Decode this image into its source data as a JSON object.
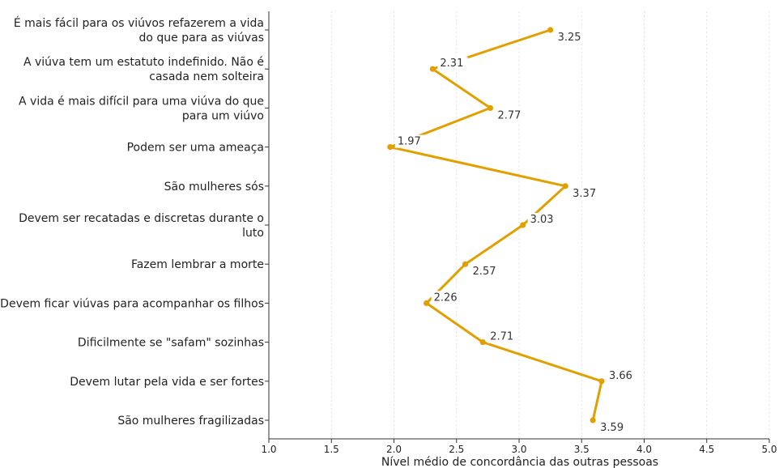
{
  "chart_data": {
    "type": "line",
    "orientation": "horizontal",
    "title": "",
    "xlabel": "Nível médio de concordância das outras pessoas",
    "ylabel": "",
    "xlim": [
      1.0,
      5.0
    ],
    "x_ticks": [
      "1.0",
      "1.5",
      "2.0",
      "2.5",
      "3.0",
      "3.5",
      "4.0",
      "4.5",
      "5.0"
    ],
    "x_tick_values": [
      1.0,
      1.5,
      2.0,
      2.5,
      3.0,
      3.5,
      4.0,
      4.5,
      5.0
    ],
    "grid": "vertical dashed, light",
    "legend": "none",
    "color": "#E0A000",
    "categories": [
      [
        "É mais fácil para os viúvos refazerem a vida",
        "do que para as viúvas"
      ],
      [
        "A viúva tem um estatuto indefinido. Não é",
        "casada nem solteira"
      ],
      [
        "A vida é mais difícil para uma viúva do que",
        "para um viúvo"
      ],
      [
        "Podem ser uma ameaça"
      ],
      [
        "São mulheres sós"
      ],
      [
        "Devem ser recatadas e discretas durante o",
        "luto"
      ],
      [
        "Fazem lembrar a morte"
      ],
      [
        "Devem ficar viúvas para acompanhar os filhos"
      ],
      [
        "Dificilmente se \"safam\" sozinhas"
      ],
      [
        "Devem lutar pela vida e ser fortes"
      ],
      [
        "São mulheres fragilizadas"
      ]
    ],
    "values": [
      3.25,
      2.31,
      2.77,
      1.97,
      3.37,
      3.03,
      2.57,
      2.26,
      2.71,
      3.66,
      3.59
    ],
    "value_labels": [
      "3.25",
      "2.31",
      "2.77",
      "1.97",
      "3.37",
      "3.03",
      "2.57",
      "2.26",
      "2.71",
      "3.66",
      "3.59"
    ]
  }
}
